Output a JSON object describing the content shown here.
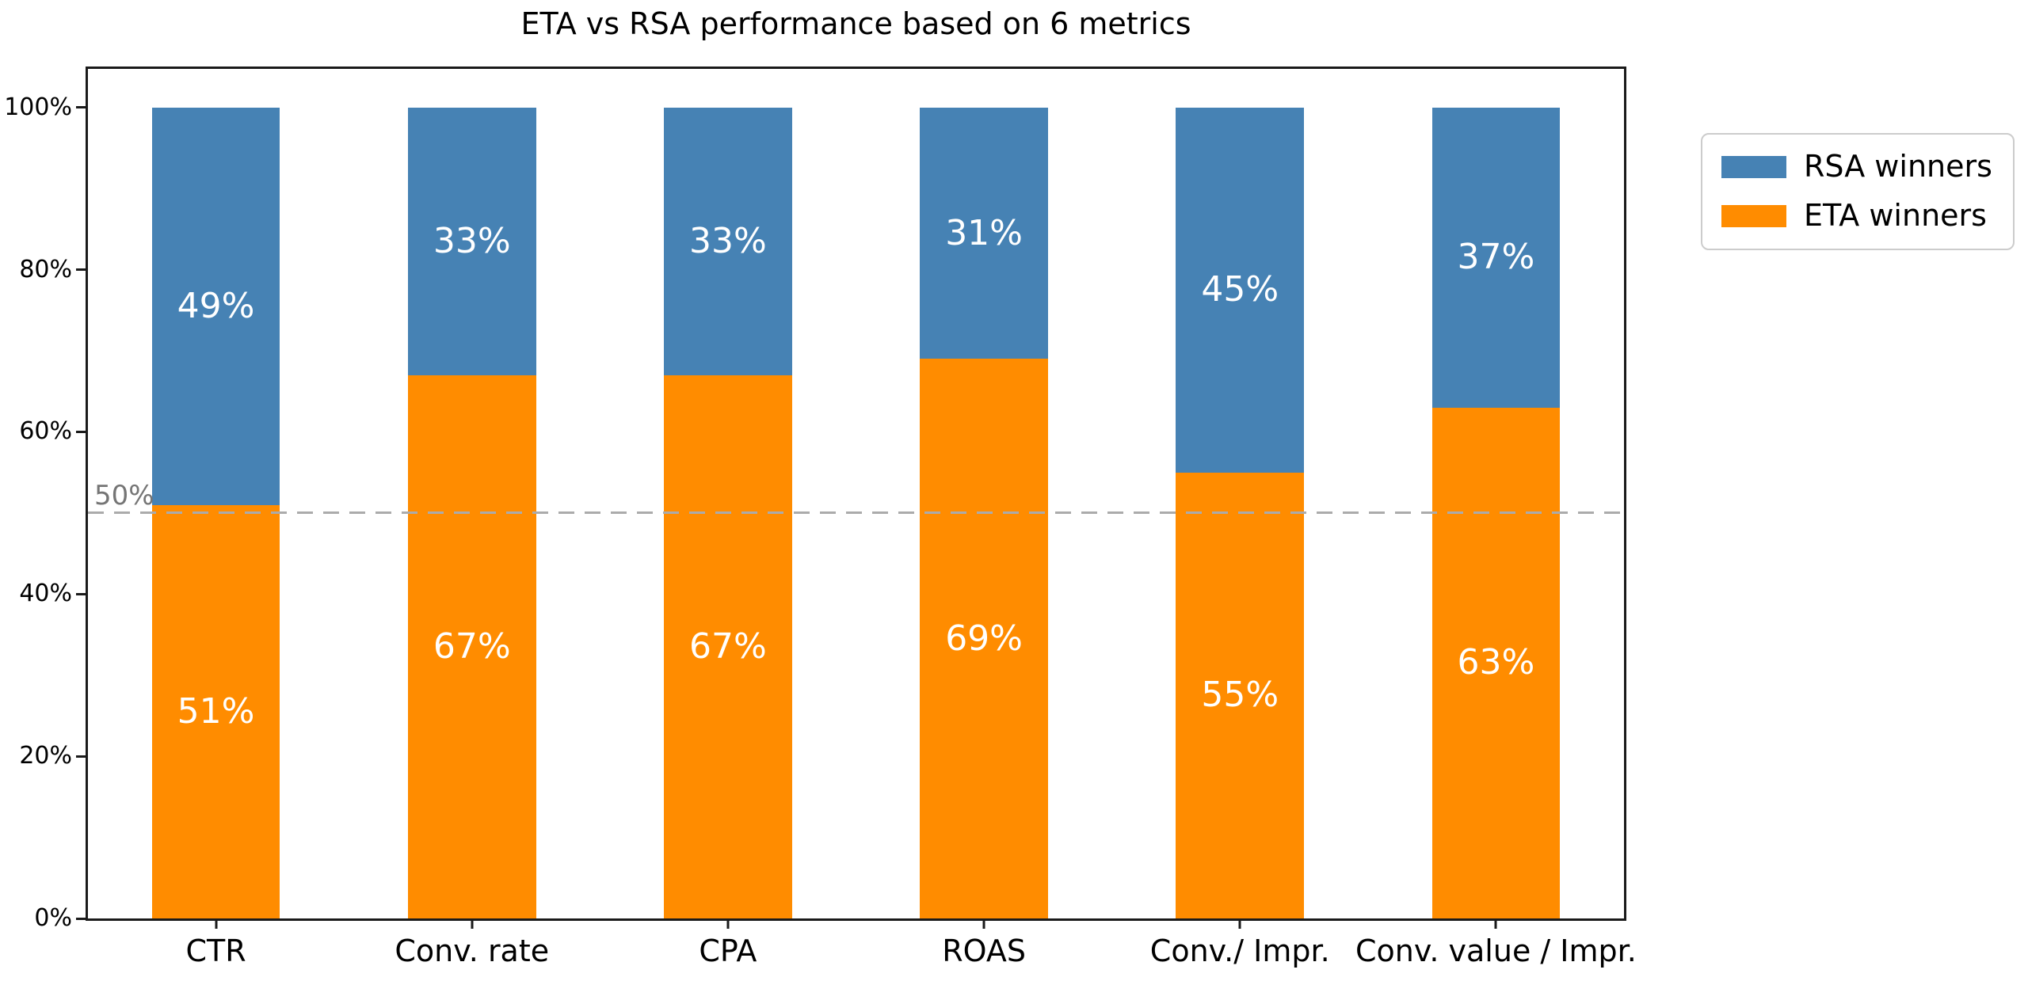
{
  "chart_data": {
    "type": "bar",
    "stacked": true,
    "title": "ETA vs RSA performance based on 6 metrics",
    "categories": [
      "CTR",
      "Conv. rate",
      "CPA",
      "ROAS",
      "Conv./ Impr.",
      "Conv. value / Impr."
    ],
    "series": [
      {
        "name": "ETA winners",
        "color": "#ff8c00",
        "values": [
          51,
          67,
          67,
          69,
          55,
          63
        ]
      },
      {
        "name": "RSA winners",
        "color": "#4682b4",
        "values": [
          49,
          33,
          33,
          31,
          45,
          37
        ]
      }
    ],
    "value_label_suffix": "%",
    "ylim": [
      0,
      104.76
    ],
    "yticks": [
      {
        "value": 0,
        "label": "0%"
      },
      {
        "value": 20,
        "label": "20%"
      },
      {
        "value": 40,
        "label": "40%"
      },
      {
        "value": 60,
        "label": "60%"
      },
      {
        "value": 80,
        "label": "80%"
      },
      {
        "value": 100,
        "label": "100%"
      }
    ],
    "grid": false,
    "reference_line": {
      "value": 50,
      "label": "50%",
      "color": "#ababab"
    },
    "legend": {
      "position": "outside-upper-right",
      "items": [
        {
          "label": "RSA winners",
          "color": "#4682b4"
        },
        {
          "label": "ETA winners",
          "color": "#ff8c00"
        }
      ]
    }
  }
}
